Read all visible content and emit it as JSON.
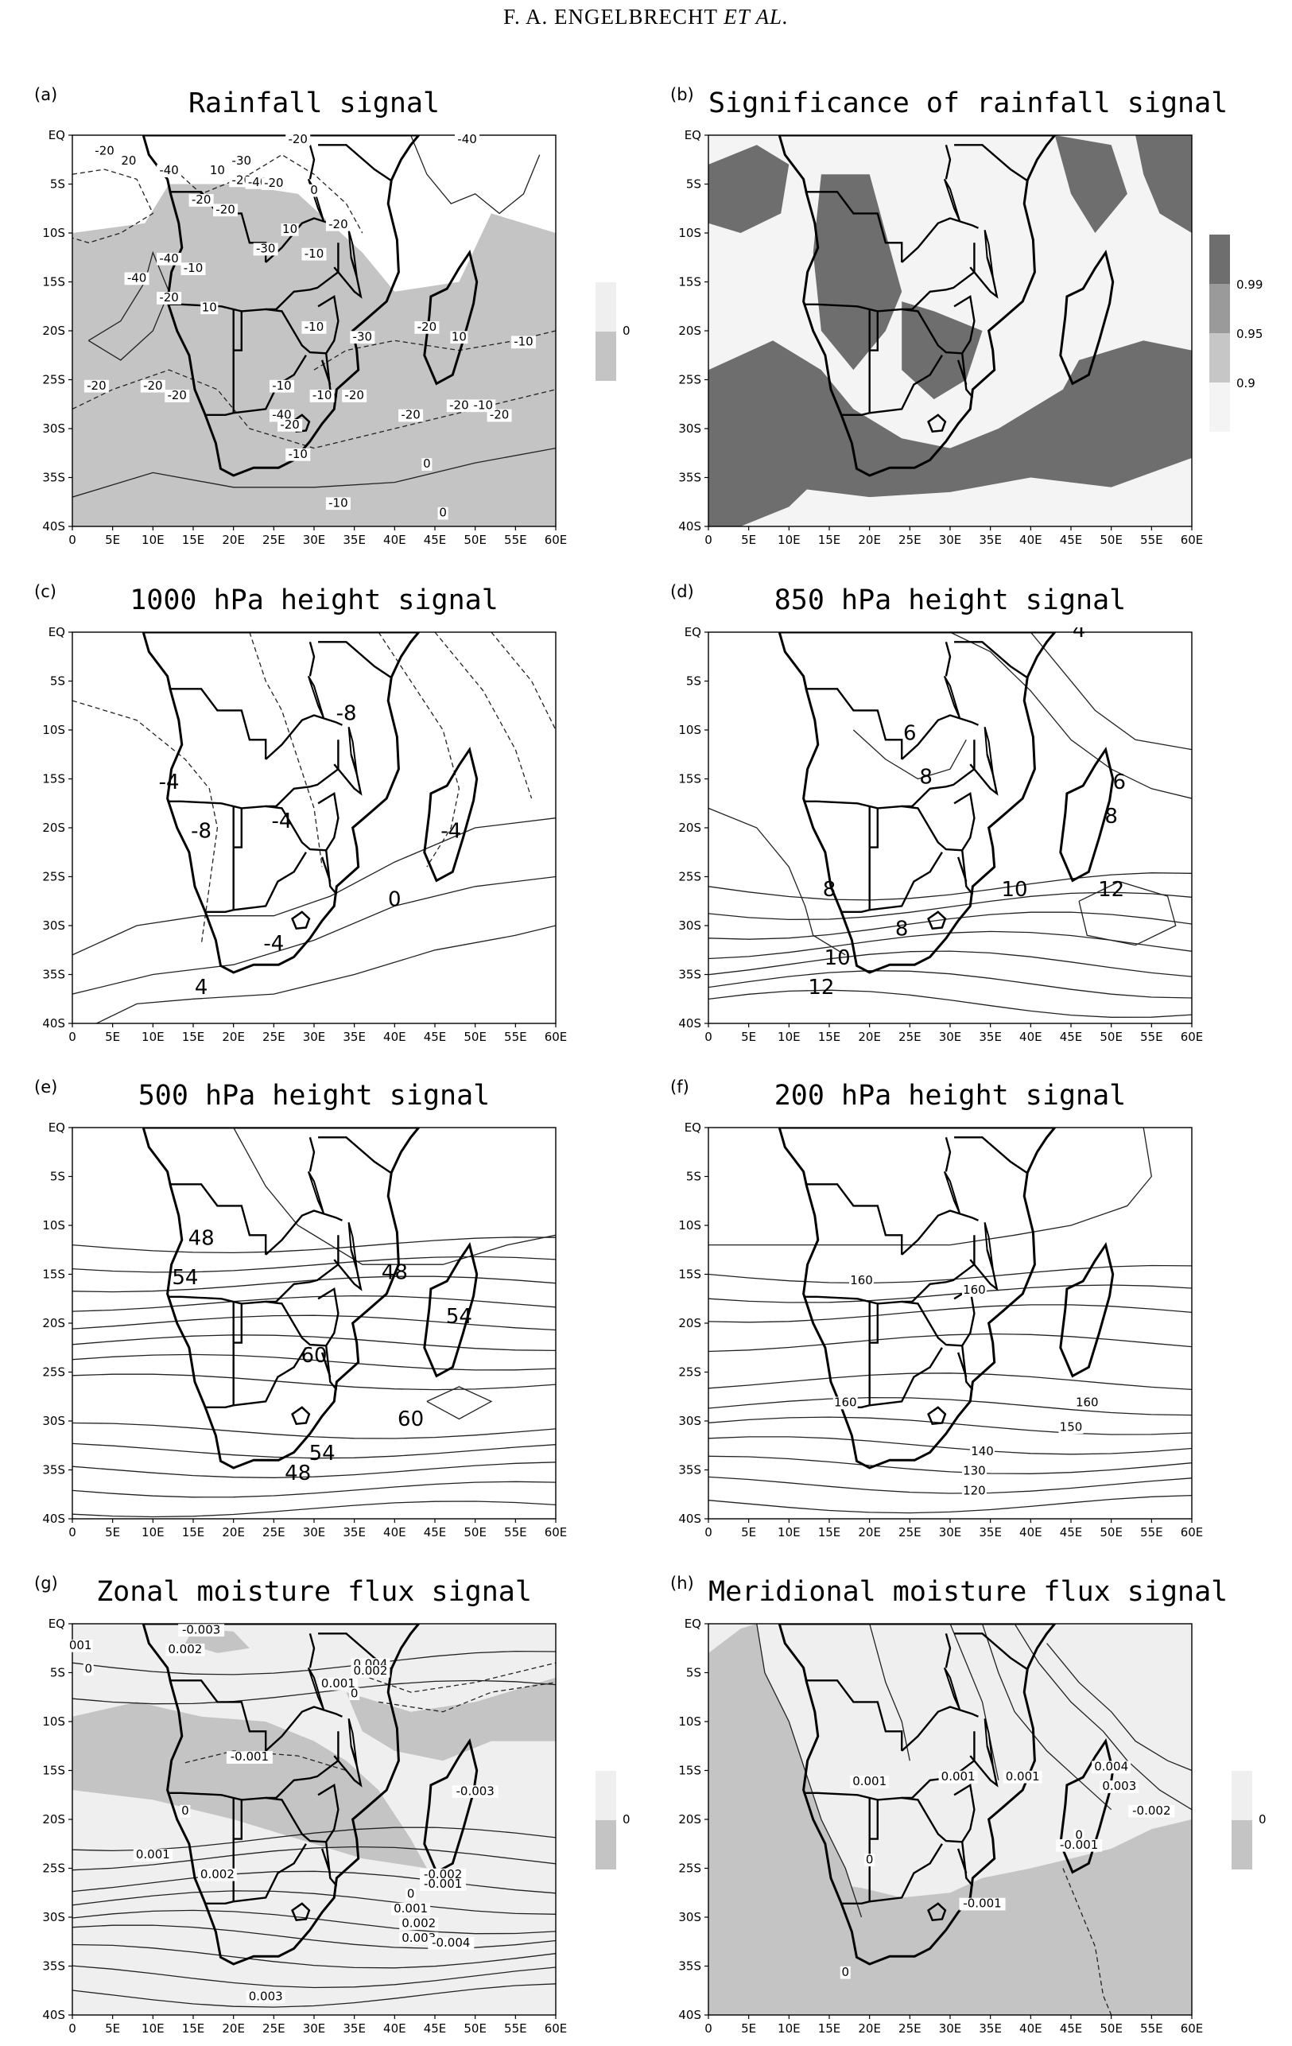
{
  "header": {
    "author_line": "F. A. ENGELBRECHT",
    "et_al": "ET AL."
  },
  "axes": {
    "lat_labels": [
      "EQ",
      "5S",
      "10S",
      "15S",
      "20S",
      "25S",
      "30S",
      "35S",
      "40S"
    ],
    "lon_labels": [
      "0",
      "5E",
      "10E",
      "15E",
      "20E",
      "25E",
      "30E",
      "35E",
      "40E",
      "45E",
      "50E",
      "55E",
      "60E"
    ]
  },
  "panels": [
    {
      "id": "a",
      "label": "(a)",
      "title": "Rainfall signal",
      "colorbar": {
        "labels": [
          "0"
        ]
      },
      "contour_labels": [
        "-20",
        "-40",
        "-20",
        "20",
        "-30",
        "-40",
        "10",
        "-20",
        "-40",
        "-20",
        "0",
        "-20",
        "-20",
        "-20",
        "10",
        "-30",
        "-10",
        "-40",
        "-10",
        "-40",
        "-20",
        "10",
        "-10",
        "-20",
        "-30",
        "10",
        "-10",
        "-20",
        "-20",
        "-20",
        "-10",
        "-40",
        "-20",
        "-10",
        "-20",
        "-20",
        "-20",
        "-10",
        "-20",
        "-10",
        "0",
        "-10",
        "0"
      ]
    },
    {
      "id": "b",
      "label": "(b)",
      "title": "Significance of rainfall signal",
      "colorbar": {
        "labels": [
          "0.99",
          "0.95",
          "0.9"
        ]
      }
    },
    {
      "id": "c",
      "label": "(c)",
      "title": "1000 hPa height signal",
      "contour_labels": [
        "-8",
        "-4",
        "-8",
        "-4",
        "-4",
        "0",
        "-4",
        "4"
      ]
    },
    {
      "id": "d",
      "label": "(d)",
      "title": "850 hPa height signal",
      "contour_labels": [
        "4",
        "6",
        "8",
        "6",
        "8",
        "8",
        "10",
        "12",
        "8",
        "10",
        "12"
      ]
    },
    {
      "id": "e",
      "label": "(e)",
      "title": "500 hPa height signal",
      "contour_labels": [
        "48",
        "54",
        "48",
        "54",
        "60",
        "60",
        "54",
        "48"
      ]
    },
    {
      "id": "f",
      "label": "(f)",
      "title": "200 hPa height signal",
      "contour_labels": [
        "160",
        "160",
        "160",
        "160",
        "150",
        "140",
        "130",
        "120"
      ]
    },
    {
      "id": "g",
      "label": "(g)",
      "title": "Zonal moisture flux signal",
      "colorbar": {
        "labels": [
          "0"
        ]
      },
      "contour_labels": [
        "-0.003",
        "001",
        "0.002",
        "0",
        "0.004",
        "0.002",
        "0.001",
        "0",
        "-0.001",
        "-0.003",
        "0",
        "0.001",
        "0.002",
        "-0.002",
        "-0.001",
        "0",
        "0.001",
        "0.002",
        "0.003",
        "-0.004",
        "0.003"
      ]
    },
    {
      "id": "h",
      "label": "(h)",
      "title": "Meridional moisture flux signal",
      "colorbar": {
        "labels": [
          "0"
        ]
      },
      "contour_labels": [
        "0.001",
        "0.001",
        "0.001",
        "0.004",
        "0.003",
        "-0.002",
        "0",
        "0",
        "-0.001",
        "-0.001",
        "0"
      ]
    }
  ]
}
